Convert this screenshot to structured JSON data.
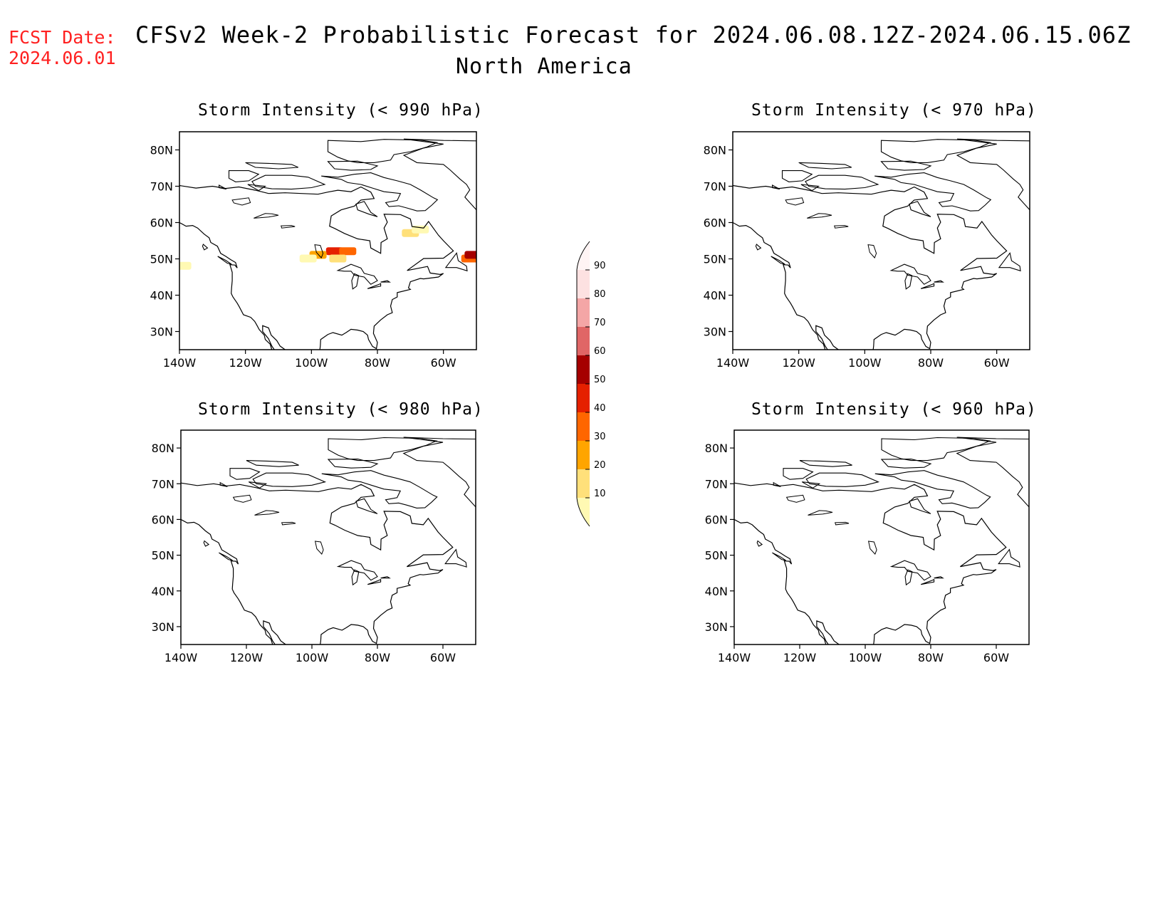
{
  "header": {
    "fcst_label": "FCST Date:",
    "fcst_date": "2024.06.01",
    "title": "CFSv2 Week-2 Probabilistic Forecast for 2024.06.08.12Z-2024.06.15.06Z",
    "region": "North America"
  },
  "panels": [
    {
      "title": "Storm Intensity (< 990 hPa)",
      "has_shading": true
    },
    {
      "title": "Storm Intensity (< 970 hPa)",
      "has_shading": false
    },
    {
      "title": "Storm Intensity (< 980 hPa)",
      "has_shading": false
    },
    {
      "title": "Storm Intensity (< 960 hPa)",
      "has_shading": false
    }
  ],
  "axes": {
    "lat_ticks": [
      "80N",
      "70N",
      "60N",
      "50N",
      "40N",
      "30N"
    ],
    "lon_ticks": [
      "140W",
      "120W",
      "100W",
      "80W",
      "60W"
    ],
    "lat_values": [
      80,
      70,
      60,
      50,
      40,
      30
    ],
    "lon_values": [
      -140,
      -120,
      -100,
      -80,
      -60
    ],
    "lat_range": [
      25,
      85
    ],
    "lon_range": [
      -140,
      -50
    ]
  },
  "colorbar": {
    "levels": [
      "10",
      "20",
      "30",
      "40",
      "50",
      "60",
      "70",
      "80",
      "90"
    ],
    "colors": [
      "#fff9b3",
      "#ffe07a",
      "#ffa500",
      "#ff6600",
      "#e52000",
      "#a50000",
      "#e06666",
      "#f4a6a6",
      "#fde1e1",
      "#fff4f4"
    ]
  },
  "shading_990": [
    {
      "lon": -93,
      "lat": 52,
      "prob": 50
    },
    {
      "lon": -89,
      "lat": 52,
      "prob": 40
    },
    {
      "lon": -98,
      "lat": 51,
      "prob": 30
    },
    {
      "lon": -101,
      "lat": 50,
      "prob": 10
    },
    {
      "lon": -92,
      "lat": 50,
      "prob": 20
    },
    {
      "lon": -70,
      "lat": 57,
      "prob": 20
    },
    {
      "lon": -67,
      "lat": 58,
      "prob": 10
    },
    {
      "lon": -52,
      "lat": 50,
      "prob": 40
    },
    {
      "lon": -51,
      "lat": 51,
      "prob": 60
    },
    {
      "lon": -139,
      "lat": 48,
      "prob": 10
    }
  ]
}
